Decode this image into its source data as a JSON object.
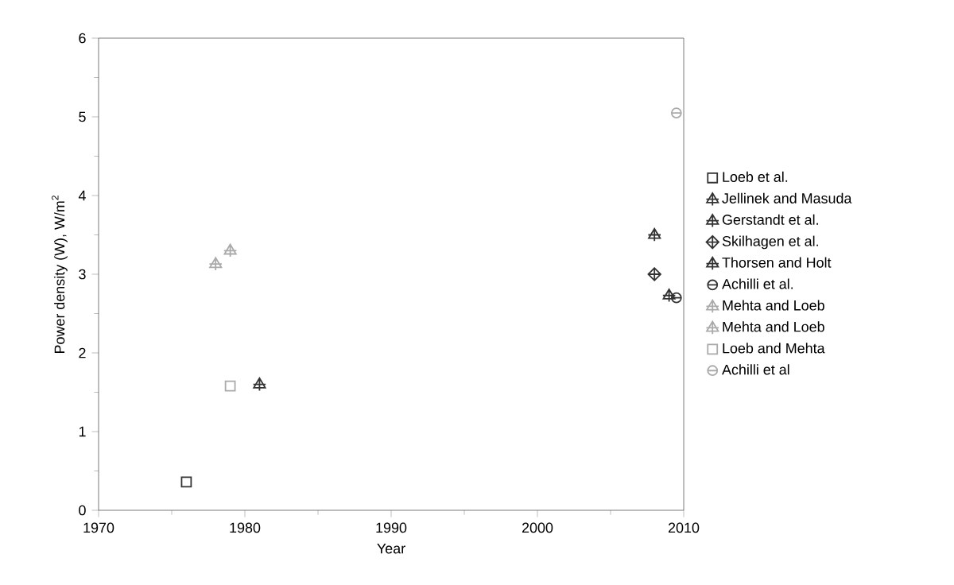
{
  "chart_data": {
    "type": "scatter",
    "xlabel": "Year",
    "ylabel": "Power density (W), W/m$^{2}$",
    "xlim": [
      1970,
      2010
    ],
    "xticks": [
      1970,
      1980,
      1990,
      2000,
      2010
    ],
    "ylim": [
      0,
      6
    ],
    "yticks": [
      0,
      1,
      2,
      3,
      4,
      5,
      6
    ],
    "legend": "right",
    "grid": false,
    "series": [
      {
        "name": "Loeb et al.",
        "color": "#333333",
        "marker": "square",
        "x": [
          1976
        ],
        "values": [
          0.36
        ]
      },
      {
        "name": "Jellinek and Masuda",
        "color": "#333333",
        "marker": "triangle",
        "x": [
          1981
        ],
        "values": [
          1.6
        ]
      },
      {
        "name": "Gerstandt et al.",
        "color": "#333333",
        "marker": "triangle",
        "x": [
          2008
        ],
        "values": [
          3.5
        ]
      },
      {
        "name": "Skilhagen et al.",
        "color": "#333333",
        "marker": "diamond",
        "x": [
          2008
        ],
        "values": [
          3.0
        ]
      },
      {
        "name": "Thorsen and Holt",
        "color": "#333333",
        "marker": "triangle",
        "x": [
          2009
        ],
        "values": [
          2.73
        ]
      },
      {
        "name": "Achilli et al.",
        "color": "#333333",
        "marker": "circle",
        "x": [
          2009.5
        ],
        "values": [
          2.7
        ]
      },
      {
        "name": "Mehta and Loeb",
        "color": "#aaaaaa",
        "marker": "triangle",
        "x": [
          1978
        ],
        "values": [
          3.13
        ]
      },
      {
        "name": "Mehta and Loeb",
        "color": "#aaaaaa",
        "marker": "triangle",
        "x": [
          1979
        ],
        "values": [
          3.3
        ]
      },
      {
        "name": "Loeb and Mehta",
        "color": "#aaaaaa",
        "marker": "square",
        "x": [
          1979
        ],
        "values": [
          1.58
        ]
      },
      {
        "name": "Achilli et al",
        "color": "#aaaaaa",
        "marker": "circle",
        "x": [
          2009.5
        ],
        "values": [
          5.05
        ]
      }
    ]
  }
}
